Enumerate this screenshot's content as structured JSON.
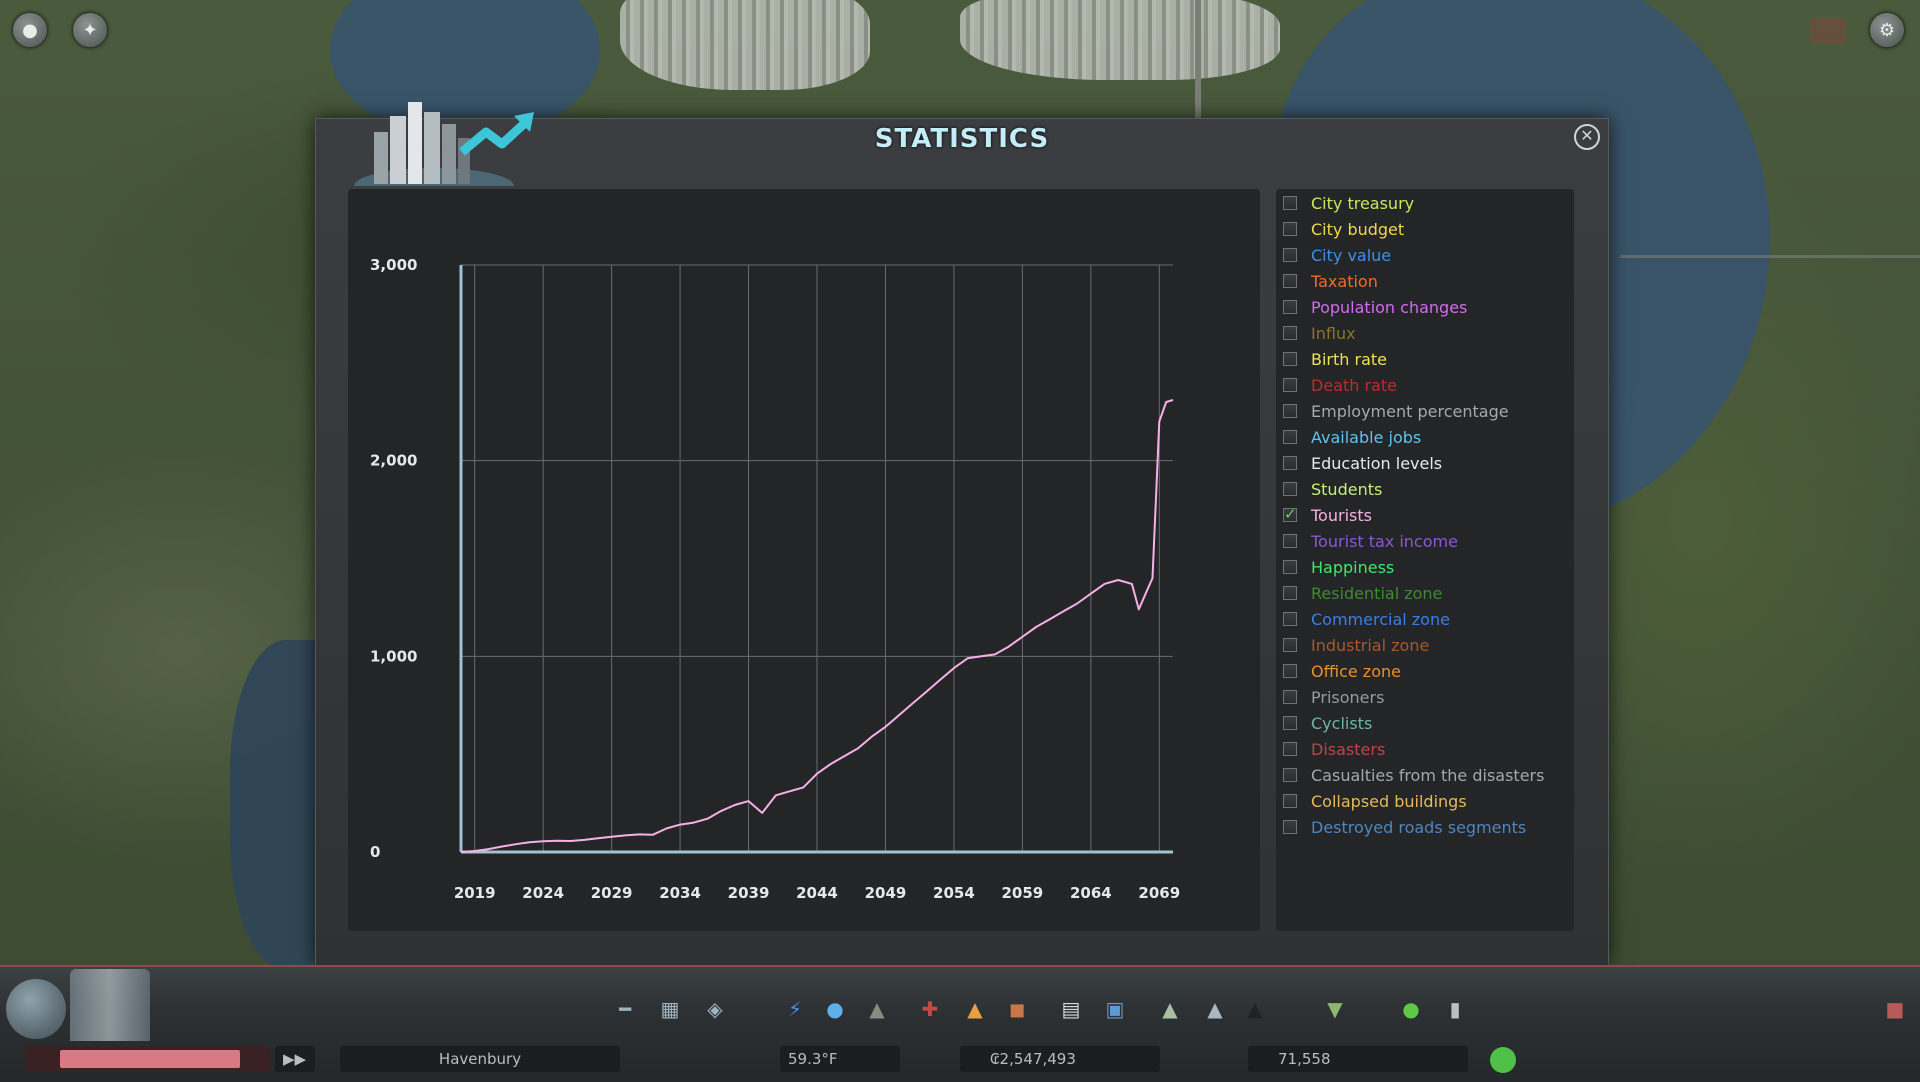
{
  "window": {
    "title": "STATISTICS",
    "close_icon": "close-icon"
  },
  "chart_data": {
    "type": "line",
    "title": "",
    "xlabel": "",
    "ylabel": "",
    "ylim": [
      0,
      3000
    ],
    "xlim": [
      2018,
      2070
    ],
    "y_ticks": [
      "0",
      "1,000",
      "2,000",
      "3,000"
    ],
    "x_ticks": [
      "2019",
      "2024",
      "2029",
      "2034",
      "2039",
      "2044",
      "2049",
      "2054",
      "2059",
      "2064",
      "2069"
    ],
    "grid": true,
    "series": [
      {
        "color": "#f7b0e6",
        "x": [
          2018,
          2019,
          2020,
          2021,
          2022,
          2023,
          2024,
          2025,
          2026,
          2027,
          2028,
          2029,
          2030,
          2031,
          2032,
          2033,
          2034,
          2035,
          2036,
          2037,
          2038,
          2039,
          2040,
          2041,
          2042,
          2043,
          2044,
          2045,
          2046,
          2047,
          2048,
          2049,
          2050,
          2051,
          2052,
          2053,
          2054,
          2055,
          2056,
          2057,
          2058,
          2059,
          2060,
          2061,
          2062,
          2063,
          2064,
          2065,
          2066,
          2067,
          2067.5,
          2068,
          2068.5,
          2069,
          2069.5,
          2070
        ],
        "y": [
          0,
          5,
          15,
          28,
          40,
          50,
          55,
          58,
          56,
          62,
          70,
          78,
          85,
          90,
          88,
          120,
          140,
          150,
          170,
          210,
          240,
          260,
          200,
          290,
          310,
          330,
          400,
          450,
          490,
          530,
          590,
          640,
          700,
          760,
          820,
          880,
          940,
          990,
          1000,
          1010,
          1050,
          1100,
          1150,
          1190,
          1230,
          1270,
          1320,
          1370,
          1390,
          1370,
          1240,
          1320,
          1400,
          2200,
          2300,
          2310
        ]
      }
    ]
  },
  "legend": {
    "items": [
      {
        "label": "City treasury",
        "color": "#c9e85a",
        "checked": false
      },
      {
        "label": "City budget",
        "color": "#f2d64f",
        "checked": false
      },
      {
        "label": "City value",
        "color": "#3f8fe8",
        "checked": false
      },
      {
        "label": "Taxation",
        "color": "#f26b2a",
        "checked": false
      },
      {
        "label": "Population changes",
        "color": "#d46bf0",
        "checked": false
      },
      {
        "label": "Influx",
        "color": "#8a7428",
        "checked": false
      },
      {
        "label": "Birth rate",
        "color": "#e9e35a",
        "checked": false
      },
      {
        "label": "Death rate",
        "color": "#c42a2a",
        "checked": false
      },
      {
        "label": "Employment percentage",
        "color": "#a4a8ab",
        "checked": false
      },
      {
        "label": "Available jobs",
        "color": "#5fc3f2",
        "checked": false
      },
      {
        "label": "Education levels",
        "color": "#e8e8e8",
        "checked": false
      },
      {
        "label": "Students",
        "color": "#c8ef7a",
        "checked": false
      },
      {
        "label": "Tourists",
        "color": "#f7b0e6",
        "checked": true
      },
      {
        "label": "Tourist tax income",
        "color": "#8d55d8",
        "checked": false
      },
      {
        "label": "Happiness",
        "color": "#3ee86a",
        "checked": false
      },
      {
        "label": "Residential zone",
        "color": "#3d8c2c",
        "checked": false
      },
      {
        "label": "Commercial zone",
        "color": "#3a7fe8",
        "checked": false
      },
      {
        "label": "Industrial zone",
        "color": "#a8582a",
        "checked": false
      },
      {
        "label": "Office zone",
        "color": "#e8922a",
        "checked": false
      },
      {
        "label": "Prisoners",
        "color": "#9a9a9a",
        "checked": false
      },
      {
        "label": "Cyclists",
        "color": "#6fb3a8",
        "checked": false
      },
      {
        "label": "Disasters",
        "color": "#b84848",
        "checked": false
      },
      {
        "label": "Casualties from the disasters",
        "color": "#a4a8ab",
        "checked": false
      },
      {
        "label": "Collapsed buildings",
        "color": "#e8b85a",
        "checked": false
      },
      {
        "label": "Destroyed roads segments",
        "color": "#4f86c0",
        "checked": false
      }
    ]
  },
  "toolbar": {
    "city_name": "Havenbury",
    "money": "₢2,547,493",
    "population": "71,558",
    "unlabeled_value": "59.3°F"
  },
  "colors": {
    "panel_bg": "#2f3133",
    "chart_bg": "#232527",
    "grid": "#7d8286",
    "title": "#c3edf7"
  }
}
